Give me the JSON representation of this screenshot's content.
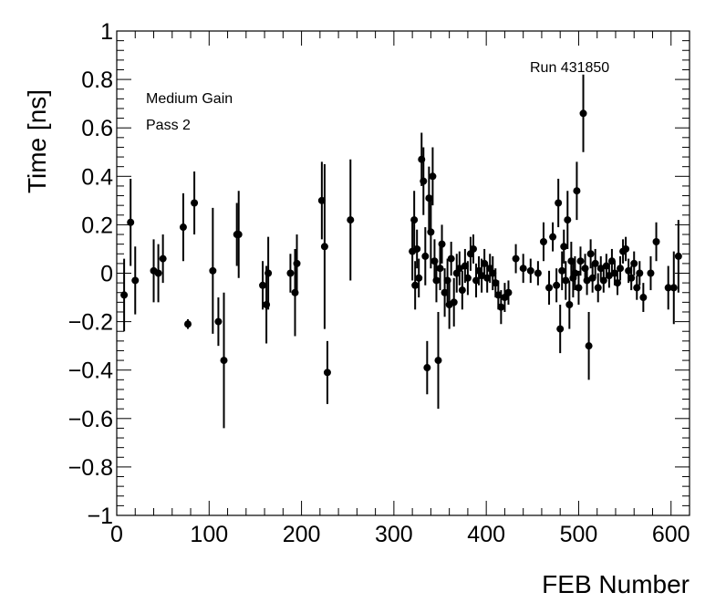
{
  "chart_data": {
    "type": "scatter",
    "title": "",
    "xlabel": "FEB Number",
    "ylabel": "Time [ns]",
    "xlim": [
      0,
      620
    ],
    "ylim": [
      -1,
      1
    ],
    "grid": false,
    "legend": "none",
    "x_ticks": [
      "0",
      "100",
      "200",
      "300",
      "400",
      "500",
      "600"
    ],
    "y_ticks": [
      "−1",
      "−0.8",
      "−0.6",
      "−0.4",
      "−0.2",
      "0",
      "0.2",
      "0.4",
      "0.6",
      "0.8",
      "1"
    ],
    "annotations": {
      "run": "Run 431850",
      "gain": "Medium Gain",
      "pass": "Pass 2"
    },
    "marker_color": "#000000",
    "points": [
      {
        "x": 8,
        "y": -0.09,
        "err": 0.15
      },
      {
        "x": 15,
        "y": 0.21,
        "err": 0.18
      },
      {
        "x": 20,
        "y": -0.03,
        "err": 0.14
      },
      {
        "x": 40,
        "y": 0.01,
        "err": 0.13
      },
      {
        "x": 45,
        "y": 0.0,
        "err": 0.12
      },
      {
        "x": 50,
        "y": 0.06,
        "err": 0.1
      },
      {
        "x": 72,
        "y": 0.19,
        "err": 0.14
      },
      {
        "x": 77,
        "y": -0.21,
        "err": 0.02
      },
      {
        "x": 84,
        "y": 0.29,
        "err": 0.13
      },
      {
        "x": 104,
        "y": 0.01,
        "err": 0.26
      },
      {
        "x": 110,
        "y": -0.2,
        "err": 0.1
      },
      {
        "x": 116,
        "y": -0.36,
        "err": 0.28
      },
      {
        "x": 130,
        "y": 0.16,
        "err": 0.13
      },
      {
        "x": 132,
        "y": 0.16,
        "err": 0.18
      },
      {
        "x": 158,
        "y": -0.05,
        "err": 0.1
      },
      {
        "x": 162,
        "y": -0.13,
        "err": 0.16
      },
      {
        "x": 164,
        "y": 0.0,
        "err": 0.15
      },
      {
        "x": 188,
        "y": 0.0,
        "err": 0.08
      },
      {
        "x": 193,
        "y": -0.08,
        "err": 0.18
      },
      {
        "x": 195,
        "y": 0.04,
        "err": 0.12
      },
      {
        "x": 222,
        "y": 0.3,
        "err": 0.16
      },
      {
        "x": 225,
        "y": 0.11,
        "err": 0.34
      },
      {
        "x": 228,
        "y": -0.41,
        "err": 0.13
      },
      {
        "x": 253,
        "y": 0.22,
        "err": 0.25
      },
      {
        "x": 320,
        "y": 0.09,
        "err": 0.12
      },
      {
        "x": 322,
        "y": 0.22,
        "err": 0.12
      },
      {
        "x": 323,
        "y": -0.05,
        "err": 0.1
      },
      {
        "x": 325,
        "y": 0.1,
        "err": 0.08
      },
      {
        "x": 327,
        "y": -0.02,
        "err": 0.08
      },
      {
        "x": 330,
        "y": 0.47,
        "err": 0.11
      },
      {
        "x": 332,
        "y": 0.38,
        "err": 0.14
      },
      {
        "x": 334,
        "y": 0.07,
        "err": 0.12
      },
      {
        "x": 336,
        "y": -0.39,
        "err": 0.11
      },
      {
        "x": 338,
        "y": 0.31,
        "err": 0.13
      },
      {
        "x": 340,
        "y": 0.17,
        "err": 0.15
      },
      {
        "x": 342,
        "y": 0.4,
        "err": 0.12
      },
      {
        "x": 344,
        "y": 0.05,
        "err": 0.09
      },
      {
        "x": 346,
        "y": -0.03,
        "err": 0.09
      },
      {
        "x": 348,
        "y": -0.36,
        "err": 0.2
      },
      {
        "x": 350,
        "y": 0.02,
        "err": 0.09
      },
      {
        "x": 352,
        "y": 0.12,
        "err": 0.08
      },
      {
        "x": 355,
        "y": -0.08,
        "err": 0.1
      },
      {
        "x": 358,
        "y": -0.03,
        "err": 0.09
      },
      {
        "x": 360,
        "y": -0.13,
        "err": 0.1
      },
      {
        "x": 362,
        "y": 0.06,
        "err": 0.07
      },
      {
        "x": 365,
        "y": -0.12,
        "err": 0.1
      },
      {
        "x": 368,
        "y": 0.0,
        "err": 0.08
      },
      {
        "x": 371,
        "y": 0.02,
        "err": 0.07
      },
      {
        "x": 374,
        "y": -0.07,
        "err": 0.08
      },
      {
        "x": 377,
        "y": 0.03,
        "err": 0.07
      },
      {
        "x": 380,
        "y": -0.02,
        "err": 0.07
      },
      {
        "x": 383,
        "y": 0.08,
        "err": 0.07
      },
      {
        "x": 386,
        "y": 0.1,
        "err": 0.06
      },
      {
        "x": 389,
        "y": -0.03,
        "err": 0.07
      },
      {
        "x": 392,
        "y": 0.01,
        "err": 0.06
      },
      {
        "x": 395,
        "y": -0.01,
        "err": 0.07
      },
      {
        "x": 398,
        "y": 0.04,
        "err": 0.06
      },
      {
        "x": 401,
        "y": -0.02,
        "err": 0.06
      },
      {
        "x": 404,
        "y": 0.02,
        "err": 0.06
      },
      {
        "x": 407,
        "y": 0.0,
        "err": 0.07
      },
      {
        "x": 410,
        "y": -0.04,
        "err": 0.06
      },
      {
        "x": 413,
        "y": -0.09,
        "err": 0.06
      },
      {
        "x": 416,
        "y": -0.14,
        "err": 0.07
      },
      {
        "x": 420,
        "y": -0.1,
        "err": 0.06
      },
      {
        "x": 424,
        "y": -0.08,
        "err": 0.05
      },
      {
        "x": 432,
        "y": 0.06,
        "err": 0.06
      },
      {
        "x": 440,
        "y": 0.02,
        "err": 0.06
      },
      {
        "x": 448,
        "y": 0.01,
        "err": 0.05
      },
      {
        "x": 456,
        "y": 0.0,
        "err": 0.05
      },
      {
        "x": 462,
        "y": 0.13,
        "err": 0.08
      },
      {
        "x": 468,
        "y": -0.06,
        "err": 0.07
      },
      {
        "x": 472,
        "y": 0.15,
        "err": 0.06
      },
      {
        "x": 476,
        "y": -0.05,
        "err": 0.07
      },
      {
        "x": 478,
        "y": 0.29,
        "err": 0.1
      },
      {
        "x": 480,
        "y": -0.23,
        "err": 0.1
      },
      {
        "x": 482,
        "y": 0.01,
        "err": 0.08
      },
      {
        "x": 484,
        "y": 0.11,
        "err": 0.07
      },
      {
        "x": 486,
        "y": -0.03,
        "err": 0.08
      },
      {
        "x": 488,
        "y": 0.22,
        "err": 0.12
      },
      {
        "x": 490,
        "y": -0.13,
        "err": 0.1
      },
      {
        "x": 492,
        "y": 0.05,
        "err": 0.08
      },
      {
        "x": 494,
        "y": -0.02,
        "err": 0.08
      },
      {
        "x": 496,
        "y": 0.0,
        "err": 0.07
      },
      {
        "x": 498,
        "y": 0.34,
        "err": 0.12
      },
      {
        "x": 500,
        "y": -0.06,
        "err": 0.07
      },
      {
        "x": 502,
        "y": 0.05,
        "err": 0.06
      },
      {
        "x": 505,
        "y": 0.66,
        "err": 0.16
      },
      {
        "x": 507,
        "y": 0.02,
        "err": 0.06
      },
      {
        "x": 509,
        "y": -0.03,
        "err": 0.06
      },
      {
        "x": 511,
        "y": -0.3,
        "err": 0.14
      },
      {
        "x": 513,
        "y": 0.08,
        "err": 0.06
      },
      {
        "x": 515,
        "y": -0.02,
        "err": 0.06
      },
      {
        "x": 518,
        "y": 0.04,
        "err": 0.06
      },
      {
        "x": 521,
        "y": -0.06,
        "err": 0.06
      },
      {
        "x": 524,
        "y": 0.02,
        "err": 0.05
      },
      {
        "x": 527,
        "y": -0.03,
        "err": 0.05
      },
      {
        "x": 530,
        "y": 0.03,
        "err": 0.05
      },
      {
        "x": 533,
        "y": -0.01,
        "err": 0.05
      },
      {
        "x": 536,
        "y": 0.05,
        "err": 0.05
      },
      {
        "x": 539,
        "y": 0.0,
        "err": 0.05
      },
      {
        "x": 542,
        "y": -0.04,
        "err": 0.05
      },
      {
        "x": 545,
        "y": 0.02,
        "err": 0.05
      },
      {
        "x": 548,
        "y": 0.09,
        "err": 0.05
      },
      {
        "x": 551,
        "y": 0.1,
        "err": 0.05
      },
      {
        "x": 554,
        "y": 0.01,
        "err": 0.05
      },
      {
        "x": 557,
        "y": -0.02,
        "err": 0.05
      },
      {
        "x": 560,
        "y": 0.04,
        "err": 0.05
      },
      {
        "x": 563,
        "y": -0.06,
        "err": 0.05
      },
      {
        "x": 566,
        "y": 0.0,
        "err": 0.05
      },
      {
        "x": 570,
        "y": -0.1,
        "err": 0.06
      },
      {
        "x": 578,
        "y": 0.0,
        "err": 0.07
      },
      {
        "x": 584,
        "y": 0.13,
        "err": 0.08
      },
      {
        "x": 597,
        "y": -0.06,
        "err": 0.09
      },
      {
        "x": 603,
        "y": -0.06,
        "err": 0.15
      },
      {
        "x": 608,
        "y": 0.07,
        "err": 0.15
      }
    ]
  }
}
